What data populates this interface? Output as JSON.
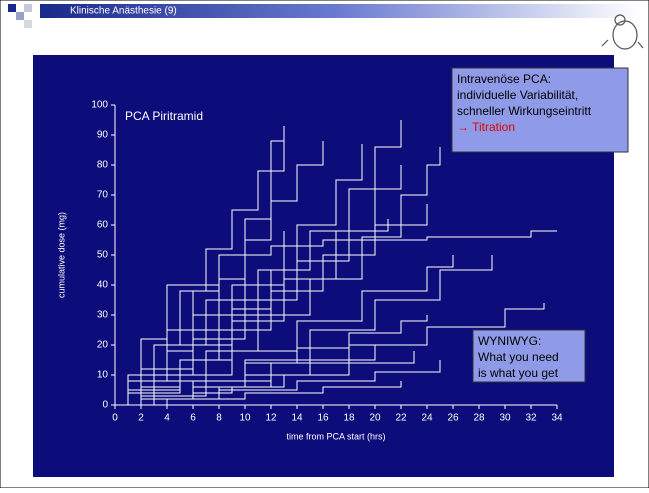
{
  "header": {
    "title": "Klinische Anästhesie (9)"
  },
  "callouts": [
    {
      "lines": [
        "Intravenöse PCA:",
        "individuelle Variabilität,",
        "schneller Wirkungseintritt"
      ],
      "highlight": "→ Titration",
      "highlight_color": "#e00000"
    },
    {
      "lines": [
        "WYNIWYG:",
        "What you need",
        "is what you get"
      ]
    }
  ],
  "chart_data": {
    "type": "line",
    "step": true,
    "title": "PCA Piritramid",
    "xlabel": "time from PCA start (hrs)",
    "ylabel": "cumulative dose (mg)",
    "xlim": [
      0,
      34
    ],
    "ylim": [
      0,
      100
    ],
    "xticks": [
      0,
      2,
      4,
      6,
      8,
      10,
      12,
      14,
      16,
      18,
      20,
      22,
      24,
      26,
      28,
      30,
      32,
      34
    ],
    "yticks": [
      0,
      10,
      20,
      30,
      40,
      50,
      60,
      70,
      80,
      90,
      100
    ],
    "series": [
      {
        "color": "#ffffff",
        "x": [
          0,
          1,
          3,
          5,
          7,
          9,
          11,
          12,
          13
        ],
        "values": [
          0,
          8,
          20,
          38,
          52,
          65,
          78,
          88,
          93
        ]
      },
      {
        "color": "#ffffff",
        "x": [
          0,
          1,
          2,
          4,
          6,
          8,
          10,
          12,
          13
        ],
        "values": [
          0,
          5,
          12,
          25,
          38,
          50,
          62,
          78,
          88
        ]
      },
      {
        "color": "#ffffff",
        "x": [
          0,
          2,
          4,
          6,
          8,
          10,
          12,
          14,
          16
        ],
        "values": [
          0,
          8,
          18,
          30,
          42,
          55,
          68,
          80,
          88
        ]
      },
      {
        "color": "#ffffff",
        "x": [
          0,
          2,
          5,
          8,
          11,
          14,
          17,
          19
        ],
        "values": [
          0,
          6,
          15,
          30,
          45,
          60,
          75,
          87
        ]
      },
      {
        "color": "#ffffff",
        "x": [
          0,
          3,
          6,
          9,
          12,
          15,
          18,
          20,
          22
        ],
        "values": [
          0,
          10,
          20,
          32,
          45,
          58,
          72,
          86,
          95
        ]
      },
      {
        "color": "#ffffff",
        "x": [
          0,
          3,
          7,
          11,
          15,
          19,
          22,
          24,
          25
        ],
        "values": [
          0,
          8,
          18,
          30,
          42,
          56,
          70,
          80,
          86
        ]
      },
      {
        "color": "#ffffff",
        "x": [
          0,
          2,
          5,
          9,
          13,
          17,
          20,
          22
        ],
        "values": [
          0,
          5,
          15,
          28,
          42,
          58,
          72,
          80
        ]
      },
      {
        "color": "#ffffff",
        "x": [
          0,
          1,
          2,
          4,
          8,
          12,
          16,
          20,
          24,
          28,
          32,
          34
        ],
        "values": [
          0,
          10,
          22,
          40,
          50,
          53,
          55,
          55,
          56,
          56,
          58,
          58
        ]
      },
      {
        "color": "#ffffff",
        "x": [
          0,
          2,
          5,
          8,
          12,
          16,
          20,
          24
        ],
        "values": [
          0,
          6,
          15,
          25,
          38,
          50,
          60,
          67
        ]
      },
      {
        "color": "#ffffff",
        "x": [
          0,
          1,
          3,
          6,
          10,
          14,
          18,
          21
        ],
        "values": [
          0,
          4,
          12,
          22,
          35,
          48,
          58,
          62
        ]
      },
      {
        "color": "#ffffff",
        "x": [
          0,
          2,
          5,
          9,
          14,
          19,
          24,
          26
        ],
        "values": [
          0,
          4,
          10,
          18,
          28,
          38,
          46,
          50
        ]
      },
      {
        "color": "#ffffff",
        "x": [
          0,
          2,
          6,
          10,
          15,
          20,
          25,
          29
        ],
        "values": [
          0,
          3,
          8,
          15,
          25,
          35,
          45,
          50
        ]
      },
      {
        "color": "#ffffff",
        "x": [
          0,
          3,
          7,
          12,
          18,
          24,
          30,
          33
        ],
        "values": [
          0,
          3,
          8,
          14,
          20,
          26,
          32,
          34
        ]
      },
      {
        "color": "#ffffff",
        "x": [
          0,
          2,
          6,
          10,
          14,
          18,
          22,
          24
        ],
        "values": [
          0,
          3,
          8,
          14,
          19,
          24,
          28,
          30
        ]
      },
      {
        "color": "#ffffff",
        "x": [
          0,
          2,
          6,
          10,
          15,
          20,
          24
        ],
        "values": [
          0,
          2,
          6,
          10,
          15,
          20,
          24
        ]
      },
      {
        "color": "#ffffff",
        "x": [
          0,
          3,
          8,
          13,
          18,
          23
        ],
        "values": [
          0,
          2,
          6,
          10,
          14,
          18
        ]
      },
      {
        "color": "#ffffff",
        "x": [
          0,
          3,
          8,
          14,
          20,
          25
        ],
        "values": [
          0,
          2,
          5,
          8,
          11,
          15
        ]
      },
      {
        "color": "#ffffff",
        "x": [
          0,
          4,
          10,
          16,
          22
        ],
        "values": [
          0,
          2,
          4,
          6,
          8
        ]
      },
      {
        "color": "#ffffff",
        "x": [
          0,
          3,
          6,
          9,
          12
        ],
        "values": [
          0,
          2,
          4,
          6,
          10
        ]
      },
      {
        "color": "#ffffff",
        "x": [
          0,
          1,
          3,
          6,
          9,
          13
        ],
        "values": [
          0,
          5,
          12,
          25,
          40,
          58
        ]
      },
      {
        "color": "#ffffff",
        "x": [
          0,
          2,
          4,
          7,
          10
        ],
        "values": [
          0,
          10,
          20,
          35,
          45
        ]
      }
    ]
  }
}
